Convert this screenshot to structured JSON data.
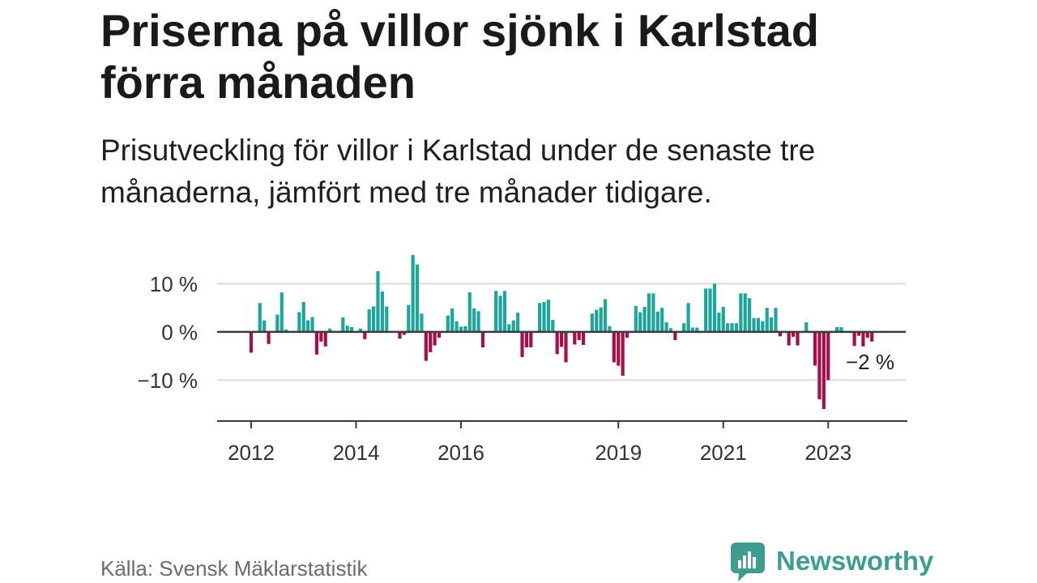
{
  "chart_data": {
    "type": "bar",
    "title": "Priserna på villor sjönk i Karlstad förra månaden",
    "subtitle": "Prisutveckling för villor i Karlstad under de senaste tre månaderna, jämfört med tre månader tidigare.",
    "x": [
      "2012-01",
      "2012-02",
      "2012-03",
      "2012-04",
      "2012-05",
      "2012-06",
      "2012-07",
      "2012-08",
      "2012-09",
      "2012-10",
      "2012-11",
      "2012-12",
      "2013-01",
      "2013-02",
      "2013-03",
      "2013-04",
      "2013-05",
      "2013-06",
      "2013-07",
      "2013-08",
      "2013-09",
      "2013-10",
      "2013-11",
      "2013-12",
      "2014-01",
      "2014-02",
      "2014-03",
      "2014-04",
      "2014-05",
      "2014-06",
      "2014-07",
      "2014-08",
      "2014-09",
      "2014-10",
      "2014-11",
      "2014-12",
      "2015-01",
      "2015-02",
      "2015-03",
      "2015-04",
      "2015-05",
      "2015-06",
      "2015-07",
      "2015-08",
      "2015-09",
      "2015-10",
      "2015-11",
      "2015-12",
      "2016-01",
      "2016-02",
      "2016-03",
      "2016-04",
      "2016-05",
      "2016-06",
      "2016-07",
      "2016-08",
      "2016-09",
      "2016-10",
      "2016-11",
      "2016-12",
      "2017-01",
      "2017-02",
      "2017-03",
      "2017-04",
      "2017-05",
      "2017-06",
      "2017-07",
      "2017-08",
      "2017-09",
      "2017-10",
      "2017-11",
      "2017-12",
      "2018-01",
      "2018-02",
      "2018-03",
      "2018-04",
      "2018-05",
      "2018-06",
      "2018-07",
      "2018-08",
      "2018-09",
      "2018-10",
      "2018-11",
      "2018-12",
      "2019-01",
      "2019-02",
      "2019-03",
      "2019-04",
      "2019-05",
      "2019-06",
      "2019-07",
      "2019-08",
      "2019-09",
      "2019-10",
      "2019-11",
      "2019-12",
      "2020-01",
      "2020-02",
      "2020-03",
      "2020-04",
      "2020-05",
      "2020-06",
      "2020-07",
      "2020-08",
      "2020-09",
      "2020-10",
      "2020-11",
      "2020-12",
      "2021-01",
      "2021-02",
      "2021-03",
      "2021-04",
      "2021-05",
      "2021-06",
      "2021-07",
      "2021-08",
      "2021-09",
      "2021-10",
      "2021-11",
      "2021-12",
      "2022-01",
      "2022-02",
      "2022-03",
      "2022-04",
      "2022-05",
      "2022-06",
      "2022-07",
      "2022-08",
      "2022-09",
      "2022-10",
      "2022-11",
      "2022-12",
      "2023-01",
      "2023-02",
      "2023-03",
      "2023-04",
      "2023-05",
      "2023-06",
      "2023-07",
      "2023-08",
      "2023-09",
      "2023-10",
      "2023-11"
    ],
    "values": [
      -4.3,
      null,
      6.0,
      2.4,
      -2.5,
      null,
      3.6,
      8.2,
      0.5,
      null,
      null,
      4.1,
      6.2,
      2.4,
      3.1,
      -4.7,
      -2.0,
      -3.0,
      0.7,
      null,
      null,
      3.0,
      1.3,
      1.0,
      null,
      0.7,
      -1.5,
      4.7,
      5.3,
      12.6,
      8.4,
      5.3,
      null,
      null,
      -1.4,
      -0.6,
      5.6,
      16.0,
      14.0,
      3.8,
      -6.0,
      -4.2,
      -2.8,
      -1.2,
      null,
      3.4,
      4.9,
      2.2,
      1.1,
      1.2,
      8.2,
      4.9,
      4.3,
      -3.2,
      null,
      null,
      8.5,
      7.5,
      8.5,
      1.6,
      2.4,
      4.0,
      -5.2,
      -3.2,
      -3.2,
      null,
      6.0,
      6.2,
      6.7,
      2.5,
      -4.6,
      -3.1,
      -6.3,
      null,
      -2.6,
      -1.7,
      -2.7,
      null,
      3.8,
      4.6,
      5.1,
      6.8,
      1.2,
      -6.3,
      -7.0,
      -9.1,
      -1.2,
      null,
      5.4,
      4.1,
      5.2,
      8.0,
      8.0,
      4.2,
      5.0,
      2.0,
      0.8,
      -1.7,
      null,
      1.8,
      6.0,
      0.9,
      0.9,
      null,
      9.0,
      9.0,
      10.0,
      4.0,
      5.2,
      1.8,
      1.8,
      1.8,
      8.0,
      8.0,
      7.0,
      2.9,
      2.9,
      2.2,
      5.0,
      3.0,
      5.0,
      -0.9,
      null,
      -2.8,
      -1.0,
      -2.8,
      null,
      2.0,
      null,
      -7.0,
      -14.0,
      -16.0,
      -10.0,
      null,
      1.0,
      1.0,
      null,
      null,
      -2.9,
      -0.8,
      -3.0,
      -1.2,
      -2.0
    ],
    "x_tick_labels": [
      "2012",
      "2014",
      "2016",
      "2019",
      "2021",
      "2023"
    ],
    "y_ticks": [
      10,
      0,
      -10
    ],
    "y_tick_labels": [
      "10 %",
      "0 %",
      "−10 %"
    ],
    "ylim": [
      -18.5,
      17
    ],
    "grid": true,
    "annotation": {
      "text": "−2 %",
      "x": "2023-11"
    },
    "colors": {
      "increase": "#1fa59b",
      "decrease": "#a3104b"
    }
  },
  "source": "Källa: Svensk Mäklarstatistik",
  "brand": {
    "name": "Newsworthy",
    "icon": "newsworthy-logo-icon",
    "color": "#3f9d90"
  }
}
